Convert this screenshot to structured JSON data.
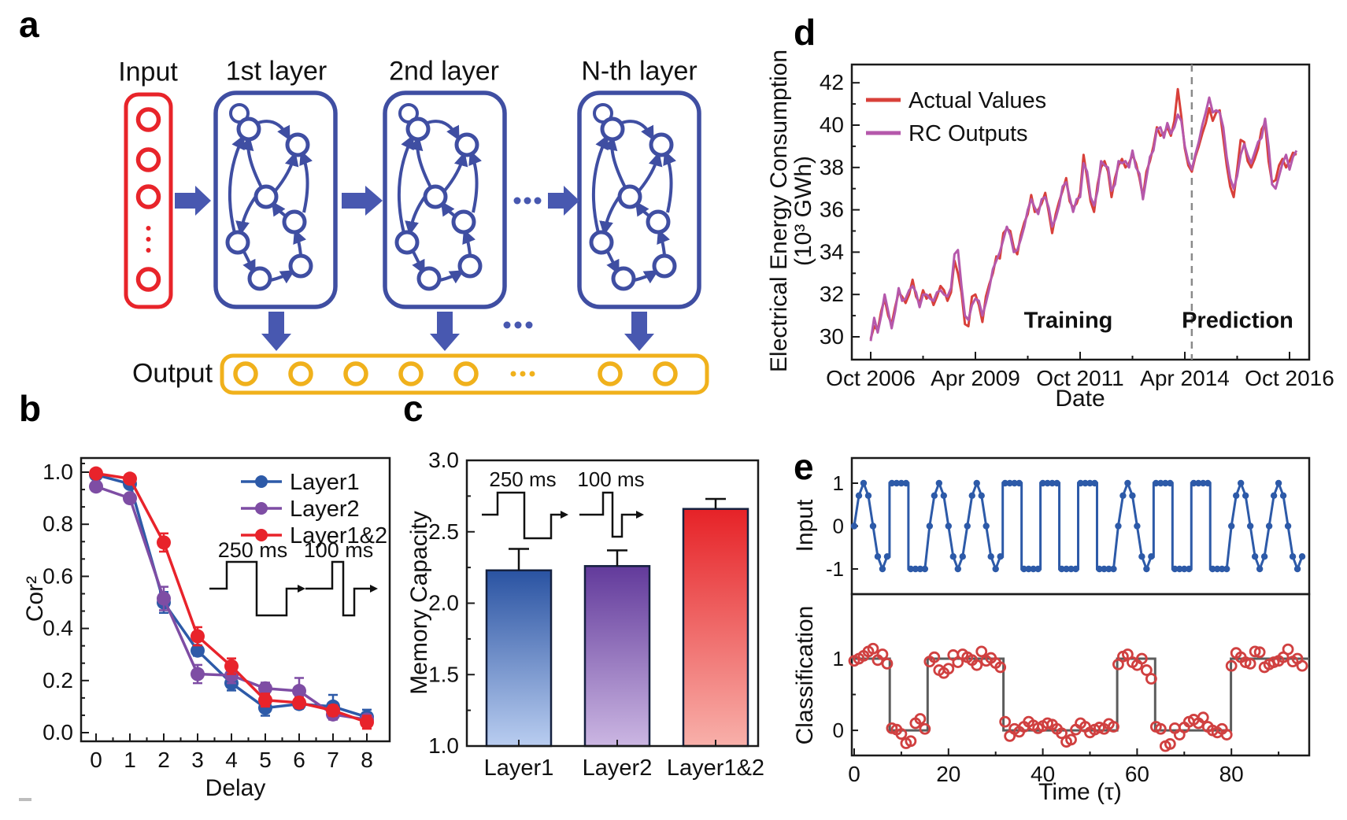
{
  "figure": {
    "background": "#ffffff"
  },
  "panels": {
    "a": {
      "label": "a",
      "input_label": "Input",
      "layers": [
        "1st layer",
        "2nd layer",
        "N-th layer"
      ],
      "output_label": "Output",
      "ellipsis": "...",
      "colors": {
        "red": "#e8242a",
        "blue": "#3f4ea2",
        "arrow": "#4858b0",
        "yellow": "#f0b11c"
      }
    },
    "b": {
      "label": "b"
    },
    "c": {
      "label": "c"
    },
    "d": {
      "label": "d"
    },
    "e": {
      "label": "e"
    }
  },
  "chart_data": [
    {
      "id": "b",
      "type": "line",
      "xlabel": "Delay",
      "ylabel": "Cor²",
      "x": [
        0,
        1,
        2,
        3,
        4,
        5,
        6,
        7,
        8
      ],
      "xtick_labels": [
        "0",
        "1",
        "2",
        "3",
        "4",
        "5",
        "6",
        "7",
        "8"
      ],
      "ytick_values": [
        0,
        0.2,
        0.4,
        0.6,
        0.8,
        1.0
      ],
      "ytick_labels": [
        "0.0",
        "0.2",
        "0.4",
        "0.6",
        "0.8",
        "1.0"
      ],
      "ylim": [
        -0.033,
        1.054
      ],
      "legend_position": "top-right",
      "series": [
        {
          "name": "Layer1",
          "color": "#2d5aa8",
          "y": [
            0.99,
            0.955,
            0.5,
            0.315,
            0.19,
            0.095,
            0.11,
            0.1,
            0.06
          ],
          "err": [
            0.01,
            0.012,
            0.04,
            0.02,
            0.028,
            0.03,
            0.018,
            0.045,
            0.028
          ]
        },
        {
          "name": "Layer2",
          "color": "#7e4da4",
          "y": [
            0.945,
            0.9,
            0.515,
            0.225,
            0.22,
            0.17,
            0.16,
            0.07,
            0.05
          ],
          "err": [
            0.012,
            0.015,
            0.045,
            0.035,
            0.03,
            0.022,
            0.05,
            0.02,
            0.015
          ]
        },
        {
          "name": "Layer1&2",
          "color": "#e8232b",
          "y": [
            0.995,
            0.975,
            0.73,
            0.37,
            0.255,
            0.125,
            0.115,
            0.085,
            0.04
          ],
          "err": [
            0.006,
            0.01,
            0.035,
            0.035,
            0.03,
            0.025,
            0.02,
            0.02,
            0.025
          ]
        }
      ],
      "inset_labels": [
        "250 ms",
        "100 ms"
      ]
    },
    {
      "id": "c",
      "type": "bar",
      "ylabel": "Memory Capacity",
      "categories": [
        "Layer1",
        "Layer2",
        "Layer1&2"
      ],
      "values": [
        2.23,
        2.26,
        2.66
      ],
      "errors": [
        0.15,
        0.11,
        0.07
      ],
      "ylim": [
        1.0,
        3.0
      ],
      "ytick_values": [
        1.0,
        1.5,
        2.0,
        2.5,
        3.0
      ],
      "ytick_labels": [
        "1.0",
        "1.5",
        "2.0",
        "2.5",
        "3.0"
      ],
      "bar_gradients": [
        [
          "#2a53a2",
          "#b9cdf0"
        ],
        [
          "#623a9b",
          "#cbb6e2"
        ],
        [
          "#e62227",
          "#f8b0aa"
        ]
      ],
      "inset_labels": [
        "250 ms",
        "100 ms"
      ]
    },
    {
      "id": "d",
      "type": "line",
      "xlabel": "Date",
      "ylabel_line1": "Electrical Energy Consumption",
      "ylabel_line2": "(10³ GWh)",
      "annotations": [
        "Training",
        "Prediction"
      ],
      "xtick_labels": [
        "Oct 2006",
        "Apr 2009",
        "Oct 2011",
        "Apr 2014",
        "Oct 2016"
      ],
      "xtick_positions": [
        0,
        30,
        60,
        90,
        120
      ],
      "ytick_values": [
        30,
        32,
        34,
        36,
        38,
        40,
        42
      ],
      "ytick_labels": [
        "30",
        "32",
        "34",
        "36",
        "38",
        "40",
        "42"
      ],
      "ylim": [
        28.9,
        42.9
      ],
      "divider_month": 92,
      "series": [
        {
          "name": "Actual Values",
          "color": "#d8403a",
          "y": [
            29.9,
            30.5,
            30.3,
            31.2,
            31.8,
            31.0,
            30.6,
            31.4,
            32.1,
            31.9,
            31.6,
            32.0,
            32.7,
            31.9,
            31.6,
            32.2,
            31.8,
            32.0,
            31.5,
            31.9,
            32.4,
            32.2,
            31.7,
            32.1,
            33.6,
            33.0,
            32.1,
            30.6,
            30.5,
            31.9,
            32.0,
            31.5,
            30.7,
            31.9,
            32.5,
            33.0,
            33.8,
            33.7,
            34.9,
            35.1,
            35.0,
            34.2,
            33.9,
            34.8,
            35.4,
            35.8,
            36.7,
            35.9,
            36.0,
            36.3,
            36.8,
            35.9,
            34.9,
            35.8,
            36.4,
            36.9,
            37.5,
            36.4,
            36.1,
            36.3,
            36.8,
            38.6,
            37.5,
            36.4,
            35.9,
            37.2,
            38.0,
            38.3,
            37.8,
            36.6,
            37.5,
            38.1,
            38.4,
            38.0,
            38.2,
            38.6,
            38.2,
            37.5,
            36.6,
            37.8,
            38.3,
            39.0,
            39.9,
            39.5,
            39.6,
            39.9,
            39.5,
            40.2,
            41.7,
            40.4,
            38.9,
            38.1,
            37.8,
            38.5,
            39.0,
            39.6,
            40.1,
            40.8,
            40.2,
            40.6,
            40.7,
            39.4,
            38.1,
            37.1,
            36.6,
            37.9,
            39.3,
            39.2,
            38.3,
            38.0,
            38.4,
            38.9,
            39.8,
            40.1,
            38.3,
            37.3,
            37.4,
            38.1,
            38.4,
            38.0,
            38.3,
            38.7,
            38.6
          ]
        },
        {
          "name": "RC Outputs",
          "color": "#b558ab",
          "y": [
            29.8,
            30.9,
            30.2,
            31.0,
            32.0,
            31.2,
            30.4,
            31.2,
            32.3,
            31.7,
            31.8,
            32.2,
            32.4,
            32.1,
            31.4,
            32.0,
            32.0,
            31.8,
            31.7,
            32.1,
            32.2,
            32.0,
            31.9,
            32.3,
            33.9,
            34.1,
            32.4,
            31.0,
            30.8,
            31.5,
            31.8,
            31.7,
            31.0,
            31.6,
            32.3,
            33.2,
            33.6,
            34.0,
            34.6,
            35.2,
            34.8,
            34.0,
            34.1,
            34.6,
            35.2,
            36.0,
            36.5,
            36.1,
            35.8,
            36.5,
            36.6,
            36.1,
            35.2,
            35.6,
            36.2,
            37.1,
            37.3,
            36.6,
            35.9,
            36.5,
            36.6,
            38.2,
            37.8,
            36.6,
            36.2,
            36.9,
            38.3,
            38.1,
            38.0,
            36.9,
            37.2,
            38.3,
            38.2,
            38.3,
            38.0,
            38.8,
            38.0,
            37.7,
            36.5,
            37.5,
            38.5,
            38.8,
            39.8,
            39.9,
            39.4,
            40.1,
            39.6,
            39.9,
            40.5,
            40.2,
            39.0,
            38.3,
            37.9,
            38.6,
            39.2,
            40.0,
            40.6,
            41.3,
            40.6,
            40.7,
            40.6,
            39.9,
            38.5,
            37.5,
            37.0,
            37.6,
            38.6,
            39.1,
            38.6,
            38.2,
            38.7,
            39.2,
            39.4,
            40.3,
            39.0,
            37.2,
            37.0,
            37.6,
            38.2,
            38.6,
            37.9,
            38.5,
            38.8
          ]
        }
      ]
    },
    {
      "id": "e_input",
      "type": "line",
      "ylabel": "Input",
      "color": "#2d5aa8",
      "ytick_values": [
        1,
        0,
        -1
      ],
      "ytick_labels": [
        "1",
        "0",
        "-1"
      ],
      "segment_length": 8,
      "segments": [
        "sine",
        "square",
        "sine",
        "sine",
        "square",
        "square",
        "square",
        "sine",
        "square",
        "square",
        "sine",
        "sine"
      ],
      "waveforms": {
        "sine": [
          0,
          0.71,
          1,
          0.71,
          0,
          -0.71,
          -1,
          -0.71
        ],
        "square": [
          1,
          1,
          1,
          1,
          -1,
          -1,
          -1,
          -1
        ]
      }
    },
    {
      "id": "e_classification",
      "type": "scatter",
      "ylabel": "Classification",
      "xlabel": "Time (τ)",
      "xtick_values": [
        0,
        20,
        40,
        60,
        80
      ],
      "xtick_labels": [
        "0",
        "20",
        "40",
        "60",
        "80"
      ],
      "ytick_values": [
        1,
        0
      ],
      "ytick_labels": [
        "1",
        "0"
      ],
      "point_color": "#d04040",
      "target_color": "#5c5c5c",
      "target_steps": [
        [
          0,
          8,
          1
        ],
        [
          8,
          16,
          0
        ],
        [
          16,
          32,
          1
        ],
        [
          32,
          56,
          0
        ],
        [
          56,
          64,
          1
        ],
        [
          64,
          80,
          0
        ],
        [
          80,
          96,
          1
        ]
      ],
      "points": [
        0.97,
        1.0,
        1.04,
        1.1,
        1.14,
        0.98,
        1.06,
        0.93,
        0.03,
        0.01,
        -0.05,
        -0.18,
        -0.15,
        0.1,
        0.16,
        0.02,
        0.96,
        1.02,
        0.84,
        0.8,
        0.86,
        1.05,
        0.95,
        1.06,
        1.02,
        0.98,
        0.91,
        1.1,
        0.97,
        1.01,
        0.94,
        0.88,
        0.12,
        -0.08,
        0.02,
        -0.02,
        0.05,
        0.12,
        0.07,
        0.03,
        0.06,
        0.1,
        0.08,
        0.02,
        -0.04,
        -0.16,
        -0.13,
        0.01,
        0.1,
        0.05,
        -0.03,
        0.01,
        0.04,
        0.02,
        0.09,
        0.05,
        0.92,
        1.03,
        1.06,
        0.95,
        0.91,
        1.0,
        0.84,
        0.72,
        0.05,
        0.02,
        -0.22,
        -0.19,
        0.03,
        -0.06,
        0.04,
        0.12,
        0.15,
        0.1,
        0.18,
        0.05,
        0.0,
        -0.03,
        0.02,
        -0.06,
        0.9,
        1.08,
        1.02,
        0.95,
        0.93,
        1.1,
        1.09,
        0.88,
        0.92,
        0.95,
        0.97,
        1.02,
        1.13,
        0.96,
        1.0,
        0.9
      ]
    }
  ]
}
